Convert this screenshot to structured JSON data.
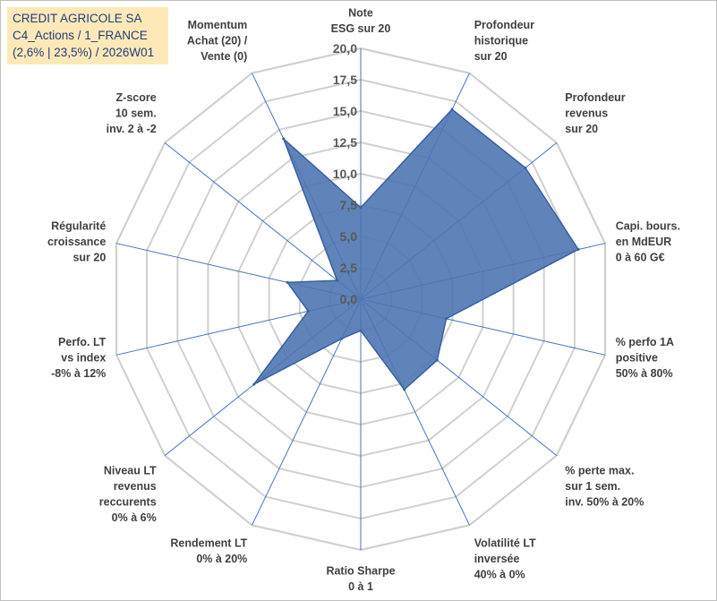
{
  "info_box": {
    "line1": "CREDIT AGRICOLE SA",
    "line2": "C4_Actions / 1_FRANCE",
    "line3": "(2,6% | 23,5%) / 2026W01"
  },
  "colors": {
    "fill": "#4f75b3",
    "stroke": "#3a5f9e",
    "grid": "#d0d0d0",
    "spokes": "#4472c4",
    "info_bg": "#fde9b8",
    "info_text": "#1f3c78"
  },
  "chart_data": {
    "type": "radar",
    "title": "",
    "rmin": 0,
    "rmax": 20,
    "tick_step": 2.5,
    "tick_labels": [
      "0,0",
      "2,5",
      "5,0",
      "7,5",
      "10,0",
      "12,5",
      "15,0",
      "17,5",
      "20,0"
    ],
    "axes": [
      [
        "Note",
        "ESG sur 20"
      ],
      [
        "Profondeur",
        "historique",
        "sur 20"
      ],
      [
        "Profondeur",
        "revenus",
        "sur 20"
      ],
      [
        "Capi. bours.",
        "en MdEUR",
        "0 à 60 G€"
      ],
      [
        "% perfo 1A",
        "positive",
        "50% à 80%"
      ],
      [
        "% perte max.",
        "sur 1 sem.",
        "inv. 50% à 20%"
      ],
      [
        "Volatilité LT",
        "inversée",
        "40% à 0%"
      ],
      [
        "Ratio Sharpe",
        "0 à 1"
      ],
      [
        "Rendement LT",
        "0% à 20%"
      ],
      [
        "Niveau LT",
        "revenus",
        "reccurents",
        "0% à 6%"
      ],
      [
        "Perfo. LT",
        "vs index",
        "-8% à 12%"
      ],
      [
        "Régularité",
        "croissance",
        "sur 20"
      ],
      [
        "Z-score",
        "10 sem.",
        "inv. 2 à -2"
      ],
      [
        "Momentum",
        "Achat (20) /",
        "Vente (0)"
      ]
    ],
    "values": [
      7.3,
      16.8,
      16.8,
      17.8,
      7.0,
      7.8,
      8.0,
      2.5,
      3.5,
      10.9,
      4.3,
      6.0,
      2.4,
      14.2
    ]
  }
}
